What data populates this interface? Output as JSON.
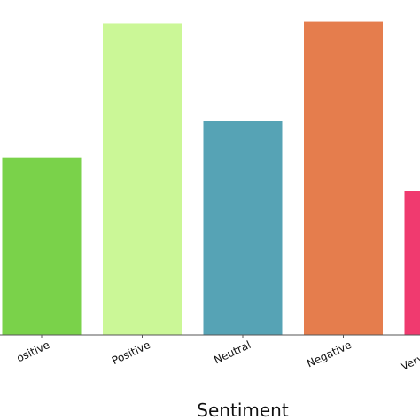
{
  "chart_data": {
    "type": "bar",
    "xlabel": "Sentiment",
    "ylabel": "",
    "categories": [
      "Very Positive",
      "Positive",
      "Neutral",
      "Negative",
      "Very Negative"
    ],
    "tick_labels": [
      "ositive",
      "Positive",
      "Neutral",
      "Negative",
      "Very Nega"
    ],
    "values": [
      53,
      93,
      64,
      93.5,
      43
    ],
    "ylim": [
      0,
      100
    ],
    "colors": [
      "#7ad24a",
      "#cbf797",
      "#56a3b5",
      "#e57d4d",
      "#f03a6f"
    ],
    "grid": false,
    "legend": "none"
  }
}
